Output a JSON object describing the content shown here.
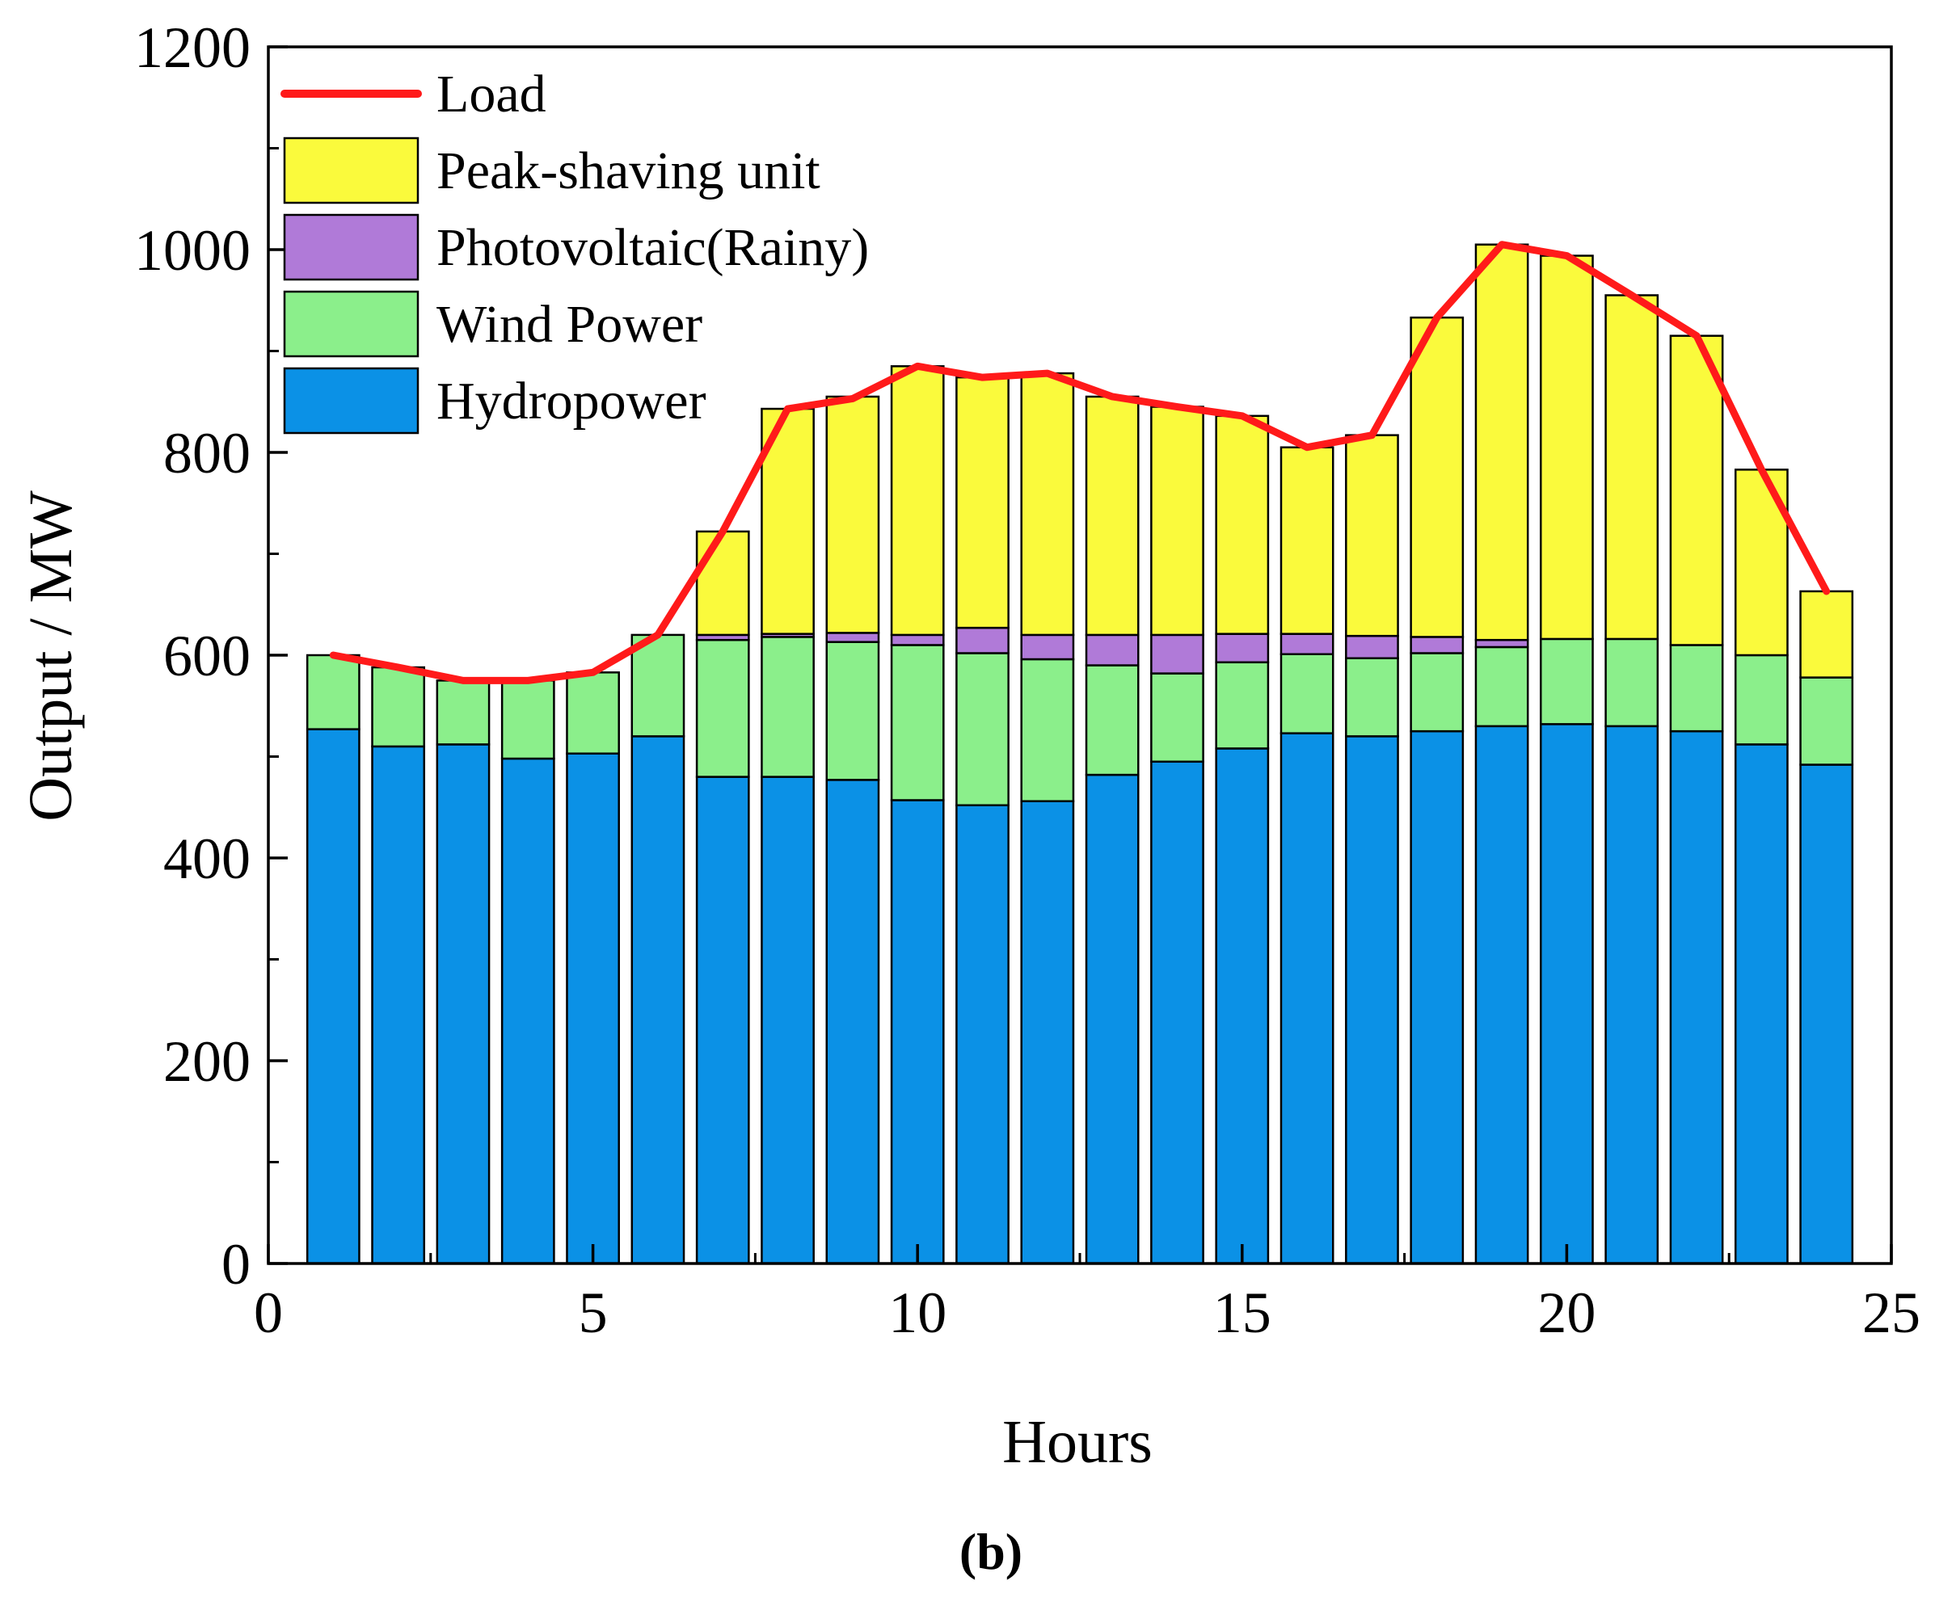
{
  "chart_data": {
    "type": "bar",
    "stacked": true,
    "title": "",
    "xlabel": "Hours",
    "ylabel": "Output / MW",
    "xlim": [
      0,
      25
    ],
    "ylim": [
      0,
      1200
    ],
    "xticks": [
      "0",
      "5",
      "10",
      "15",
      "20",
      "25"
    ],
    "yticks": [
      "0",
      "200",
      "400",
      "600",
      "800",
      "1000",
      "1200"
    ],
    "x": [
      1,
      2,
      3,
      4,
      5,
      6,
      7,
      8,
      9,
      10,
      11,
      12,
      13,
      14,
      15,
      16,
      17,
      18,
      19,
      20,
      21,
      22,
      23,
      24
    ],
    "legend_position": "top-left",
    "series": [
      {
        "name": "Hydropower",
        "kind": "bar",
        "color": "#0b91e6",
        "values": [
          527,
          510,
          512,
          498,
          503,
          520,
          480,
          480,
          477,
          457,
          452,
          456,
          482,
          495,
          508,
          523,
          520,
          525,
          530,
          532,
          530,
          525,
          512,
          492
        ]
      },
      {
        "name": "Wind Power",
        "kind": "bar",
        "color": "#8bef8b",
        "values": [
          73,
          78,
          63,
          77,
          80,
          100,
          135,
          138,
          136,
          153,
          150,
          140,
          108,
          87,
          85,
          78,
          77,
          77,
          78,
          84,
          86,
          85,
          88,
          86
        ]
      },
      {
        "name": "Photovoltaic(Rainy)",
        "kind": "bar",
        "color": "#b07ad8",
        "values": [
          0,
          0,
          0,
          0,
          0,
          0,
          5,
          3,
          9,
          10,
          25,
          24,
          30,
          38,
          28,
          20,
          22,
          16,
          7,
          0,
          0,
          0,
          0,
          0
        ]
      },
      {
        "name": "Peak-shaving unit",
        "kind": "bar",
        "color": "#fafa3c",
        "values": [
          0,
          0,
          0,
          0,
          0,
          0,
          102,
          222,
          233,
          265,
          247,
          258,
          235,
          225,
          215,
          184,
          198,
          315,
          390,
          378,
          339,
          305,
          183,
          85
        ]
      },
      {
        "name": "Load",
        "kind": "line",
        "color": "#ff1a1a",
        "values": [
          600,
          588,
          575,
          575,
          583,
          620,
          722,
          843,
          853,
          885,
          874,
          878,
          855,
          845,
          836,
          805,
          817,
          933,
          1005,
          994,
          955,
          915,
          783,
          663
        ]
      }
    ],
    "caption": "(b)"
  }
}
